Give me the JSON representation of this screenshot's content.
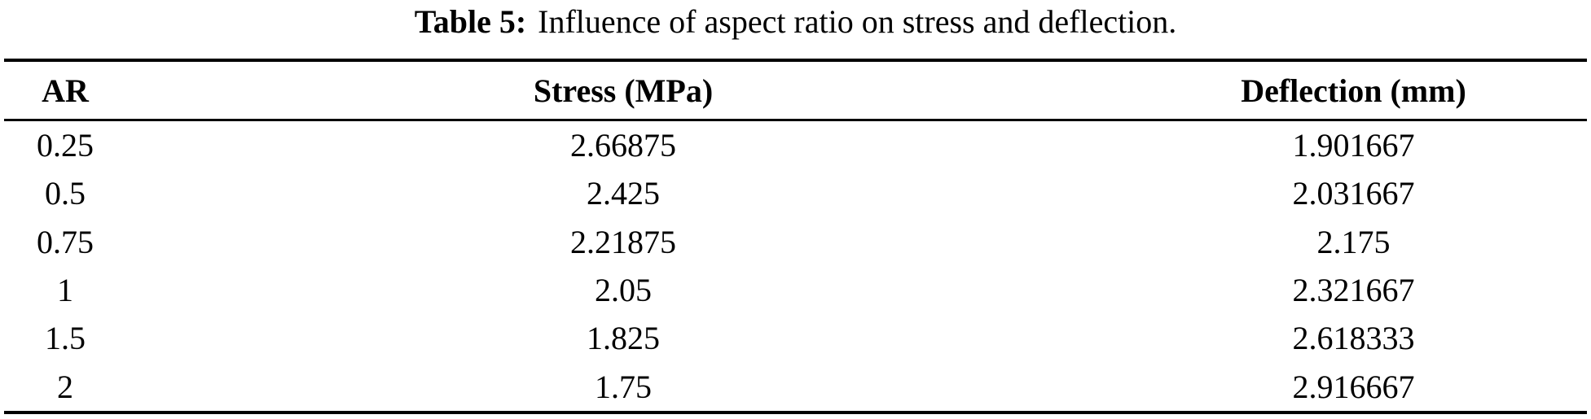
{
  "caption": {
    "label": "Table 5:",
    "text": "Influence of aspect ratio on stress and deflection."
  },
  "table": {
    "columns": [
      "AR",
      "Stress (MPa)",
      "Deflection (mm)"
    ],
    "rows": [
      {
        "ar": "0.25",
        "stress": "2.66875",
        "deflection": "1.901667"
      },
      {
        "ar": "0.5",
        "stress": "2.425",
        "deflection": "2.031667"
      },
      {
        "ar": "0.75",
        "stress": "2.21875",
        "deflection": "2.175"
      },
      {
        "ar": "1",
        "stress": "2.05",
        "deflection": "2.321667"
      },
      {
        "ar": "1.5",
        "stress": "1.825",
        "deflection": "2.618333"
      },
      {
        "ar": "2",
        "stress": "1.75",
        "deflection": "2.916667"
      }
    ]
  },
  "colors": {
    "text": "#000000",
    "background": "#ffffff",
    "rule": "#000000"
  }
}
